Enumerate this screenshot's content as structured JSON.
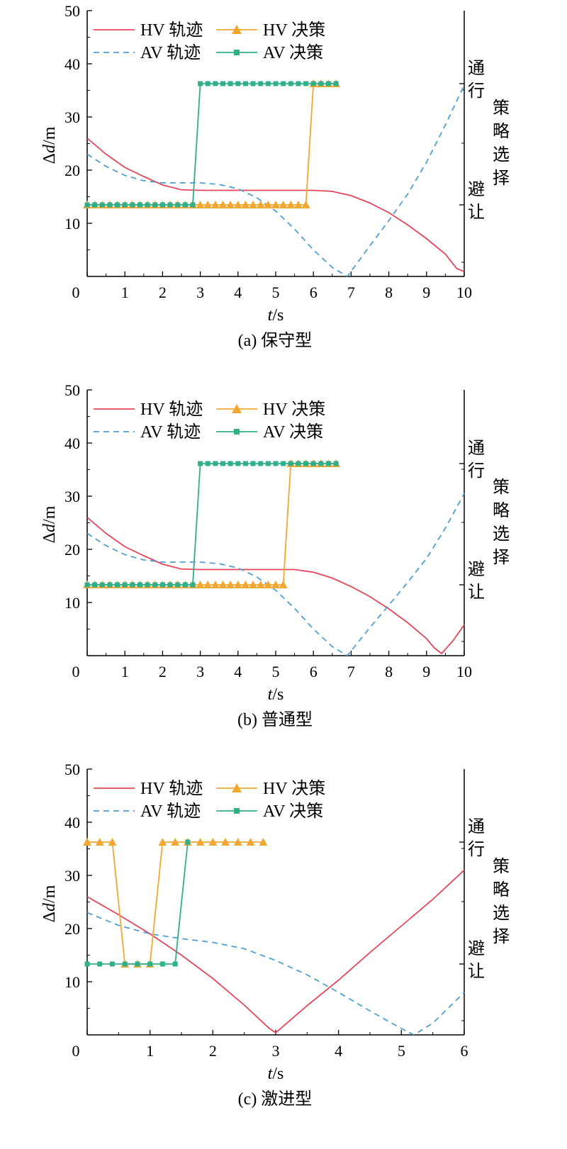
{
  "chart_data": [
    {
      "type": "line",
      "panel": "a",
      "caption": "(a) 保守型",
      "xlabel": "t/s",
      "ylabel": "Δd/m",
      "xlim": [
        0,
        10
      ],
      "ylim": [
        0,
        50
      ],
      "xticks": [
        0,
        1,
        2,
        3,
        4,
        5,
        6,
        7,
        8,
        9,
        10
      ],
      "yticks": [
        10,
        20,
        30,
        40,
        50
      ],
      "y_right_label": "策略选择",
      "y_right_ticks": [
        "避让",
        "通行"
      ],
      "legend": [
        "HV 轨迹",
        "HV 决策",
        "AV 轨迹",
        "AV 决策"
      ],
      "legend_position": "top-left",
      "series": [
        {
          "name": "HV 轨迹",
          "style": "solid",
          "color": "#e8455a",
          "x": [
            0,
            0.5,
            1,
            1.5,
            2,
            2.5,
            3,
            4,
            5,
            6,
            6.5,
            7,
            7.5,
            8,
            8.5,
            9,
            9.5,
            9.8,
            10
          ],
          "y": [
            26,
            23,
            20.5,
            18.8,
            17.2,
            16.3,
            16.2,
            16.2,
            16.2,
            16.2,
            16,
            15.2,
            13.8,
            12,
            9.7,
            7.1,
            4.2,
            1.5,
            0.9
          ]
        },
        {
          "name": "AV 轨迹",
          "style": "dashed",
          "color": "#4f9fd1",
          "x": [
            0,
            0.5,
            1,
            1.5,
            2,
            2.5,
            3,
            3.5,
            4,
            4.5,
            5,
            5.5,
            6,
            6.5,
            6.9,
            7.5,
            8,
            8.5,
            9,
            9.5,
            10
          ],
          "y": [
            23,
            20.7,
            19,
            18,
            17.6,
            17.6,
            17.6,
            17.3,
            16.5,
            14.8,
            12.3,
            8.9,
            5,
            1.7,
            0,
            5.8,
            10.5,
            15.5,
            21.5,
            28.5,
            36
          ]
        },
        {
          "name": "HV 决策",
          "style": "solid-triangle",
          "color": "#f0a830",
          "x": [
            0,
            0.2,
            0.4,
            0.6,
            0.8,
            1.0,
            1.2,
            1.4,
            1.6,
            1.8,
            2.0,
            2.2,
            2.4,
            2.6,
            2.8,
            3.0,
            3.2,
            3.4,
            3.6,
            3.8,
            4.0,
            4.2,
            4.4,
            4.6,
            4.8,
            5.0,
            5.2,
            5.4,
            5.6,
            5.8,
            6.0,
            6.2,
            6.4,
            6.6
          ],
          "decision": [
            "避让",
            "避让",
            "避让",
            "避让",
            "避让",
            "避让",
            "避让",
            "避让",
            "避让",
            "避让",
            "避让",
            "避让",
            "避让",
            "避让",
            "避让",
            "避让",
            "避让",
            "避让",
            "避让",
            "避让",
            "避让",
            "避让",
            "避让",
            "避让",
            "避让",
            "避让",
            "避让",
            "避让",
            "避让",
            "避让",
            "通行",
            "通行",
            "通行",
            "通行"
          ]
        },
        {
          "name": "AV 决策",
          "style": "solid-square",
          "color": "#2fb08a",
          "x": [
            0,
            0.2,
            0.4,
            0.6,
            0.8,
            1.0,
            1.2,
            1.4,
            1.6,
            1.8,
            2.0,
            2.2,
            2.4,
            2.6,
            2.8,
            3.0,
            3.2,
            3.4,
            3.6,
            3.8,
            4.0,
            4.2,
            4.4,
            4.6,
            4.8,
            5.0,
            5.2,
            5.4,
            5.6,
            5.8,
            6.0,
            6.2,
            6.4,
            6.6
          ],
          "decision": [
            "避让",
            "避让",
            "避让",
            "避让",
            "避让",
            "避让",
            "避让",
            "避让",
            "避让",
            "避让",
            "避让",
            "避让",
            "避让",
            "避让",
            "避让",
            "通行",
            "通行",
            "通行",
            "通行",
            "通行",
            "通行",
            "通行",
            "通行",
            "通行",
            "通行",
            "通行",
            "通行",
            "通行",
            "通行",
            "通行",
            "通行",
            "通行",
            "通行",
            "通行"
          ]
        }
      ]
    },
    {
      "type": "line",
      "panel": "b",
      "caption": "(b) 普通型",
      "xlabel": "t/s",
      "ylabel": "Δd/m",
      "xlim": [
        0,
        10
      ],
      "ylim": [
        0,
        50
      ],
      "xticks": [
        0,
        1,
        2,
        3,
        4,
        5,
        6,
        7,
        8,
        9,
        10
      ],
      "yticks": [
        10,
        20,
        30,
        40,
        50
      ],
      "y_right_label": "策略选择",
      "y_right_ticks": [
        "避让",
        "通行"
      ],
      "legend": [
        "HV 轨迹",
        "HV 决策",
        "AV 轨迹",
        "AV 决策"
      ],
      "legend_position": "top-left",
      "series": [
        {
          "name": "HV 轨迹",
          "style": "solid",
          "color": "#e8455a",
          "x": [
            0,
            0.5,
            1,
            1.5,
            2,
            2.5,
            3,
            4,
            5,
            5.5,
            6,
            6.5,
            7,
            7.5,
            8,
            8.5,
            9,
            9.2,
            9.4,
            9.7,
            10
          ],
          "y": [
            26,
            23,
            20.5,
            18.8,
            17.2,
            16.3,
            16.2,
            16.2,
            16.2,
            16.2,
            15.7,
            14.6,
            13,
            11.1,
            8.8,
            6.2,
            3.2,
            1.5,
            0.4,
            2.8,
            5.8
          ]
        },
        {
          "name": "AV 轨迹",
          "style": "dashed",
          "color": "#4f9fd1",
          "x": [
            0,
            0.5,
            1,
            1.5,
            2,
            2.5,
            3,
            3.5,
            4,
            4.5,
            5,
            5.5,
            6,
            6.5,
            6.9,
            7.5,
            8,
            8.5,
            9,
            9.5,
            10
          ],
          "y": [
            23,
            20.7,
            19,
            18,
            17.6,
            17.6,
            17.6,
            17.3,
            16.5,
            14.8,
            12.3,
            8.9,
            5,
            1.7,
            0,
            5.3,
            9.5,
            13.8,
            18.3,
            24,
            30.5
          ]
        },
        {
          "name": "HV 决策",
          "style": "solid-triangle",
          "color": "#f0a830",
          "x": [
            0,
            0.2,
            0.4,
            0.6,
            0.8,
            1.0,
            1.2,
            1.4,
            1.6,
            1.8,
            2.0,
            2.2,
            2.4,
            2.6,
            2.8,
            3.0,
            3.2,
            3.4,
            3.6,
            3.8,
            4.0,
            4.2,
            4.4,
            4.6,
            4.8,
            5.0,
            5.2,
            5.4,
            5.6,
            5.8,
            6.0,
            6.2,
            6.4,
            6.6
          ],
          "decision": [
            "避让",
            "避让",
            "避让",
            "避让",
            "避让",
            "避让",
            "避让",
            "避让",
            "避让",
            "避让",
            "避让",
            "避让",
            "避让",
            "避让",
            "避让",
            "避让",
            "避让",
            "避让",
            "避让",
            "避让",
            "避让",
            "避让",
            "避让",
            "避让",
            "避让",
            "避让",
            "避让",
            "通行",
            "通行",
            "通行",
            "通行",
            "通行",
            "通行",
            "通行"
          ]
        },
        {
          "name": "AV 决策",
          "style": "solid-square",
          "color": "#2fb08a",
          "x": [
            0,
            0.2,
            0.4,
            0.6,
            0.8,
            1.0,
            1.2,
            1.4,
            1.6,
            1.8,
            2.0,
            2.2,
            2.4,
            2.6,
            2.8,
            3.0,
            3.2,
            3.4,
            3.6,
            3.8,
            4.0,
            4.2,
            4.4,
            4.6,
            4.8,
            5.0,
            5.2,
            5.4,
            5.6,
            5.8,
            6.0,
            6.2,
            6.4,
            6.6
          ],
          "decision": [
            "避让",
            "避让",
            "避让",
            "避让",
            "避让",
            "避让",
            "避让",
            "避让",
            "避让",
            "避让",
            "避让",
            "避让",
            "避让",
            "避让",
            "避让",
            "通行",
            "通行",
            "通行",
            "通行",
            "通行",
            "通行",
            "通行",
            "通行",
            "通行",
            "通行",
            "通行",
            "通行",
            "通行",
            "通行",
            "通行",
            "通行",
            "通行",
            "通行",
            "通行"
          ]
        }
      ]
    },
    {
      "type": "line",
      "panel": "c",
      "caption": "(c) 激进型",
      "xlabel": "t/s",
      "ylabel": "Δd/m",
      "xlim": [
        0,
        6
      ],
      "ylim": [
        0,
        50
      ],
      "xticks": [
        0,
        1,
        2,
        3,
        4,
        5,
        6
      ],
      "yticks": [
        10,
        20,
        30,
        40,
        50
      ],
      "y_right_label": "策略选择",
      "y_right_ticks": [
        "避让",
        "通行"
      ],
      "legend": [
        "HV 轨迹",
        "HV 决策",
        "AV 轨迹",
        "AV 决策"
      ],
      "legend_position": "top-left",
      "series": [
        {
          "name": "HV 轨迹",
          "style": "solid",
          "color": "#e8455a",
          "x": [
            0,
            0.5,
            1,
            1.5,
            2,
            2.5,
            2.9,
            3.0,
            3.5,
            4,
            4.5,
            5,
            5.5,
            6
          ],
          "y": [
            26,
            22.6,
            19,
            15,
            10.6,
            5.6,
            1.2,
            0.4,
            5.5,
            10.3,
            15.5,
            20.5,
            25.5,
            31
          ]
        },
        {
          "name": "AV 轨迹",
          "style": "dashed",
          "color": "#4f9fd1",
          "x": [
            0,
            0.5,
            1,
            1.5,
            2,
            2.5,
            3,
            3.5,
            4,
            4.5,
            5,
            5.2,
            5.5,
            6
          ],
          "y": [
            23,
            20.6,
            19,
            18.1,
            17.4,
            16.2,
            14,
            11.3,
            8,
            4.5,
            1.2,
            0,
            2.2,
            8
          ]
        },
        {
          "name": "HV 决策",
          "style": "solid-triangle",
          "color": "#f0a830",
          "x": [
            0,
            0.2,
            0.4,
            0.6,
            0.8,
            1.0,
            1.2,
            1.4,
            1.6,
            1.8,
            2.0,
            2.2,
            2.4,
            2.6,
            2.8
          ],
          "decision": [
            "通行",
            "通行",
            "通行",
            "避让",
            "避让",
            "避让",
            "通行",
            "通行",
            "通行",
            "通行",
            "通行",
            "通行",
            "通行",
            "通行",
            "通行"
          ]
        },
        {
          "name": "AV 决策",
          "style": "solid-square",
          "color": "#2fb08a",
          "x": [
            0,
            0.2,
            0.4,
            0.6,
            0.8,
            1.0,
            1.2,
            1.4,
            1.6
          ],
          "decision": [
            "避让",
            "避让",
            "避让",
            "避让",
            "避让",
            "避让",
            "避让",
            "避让",
            "通行"
          ]
        }
      ]
    }
  ]
}
